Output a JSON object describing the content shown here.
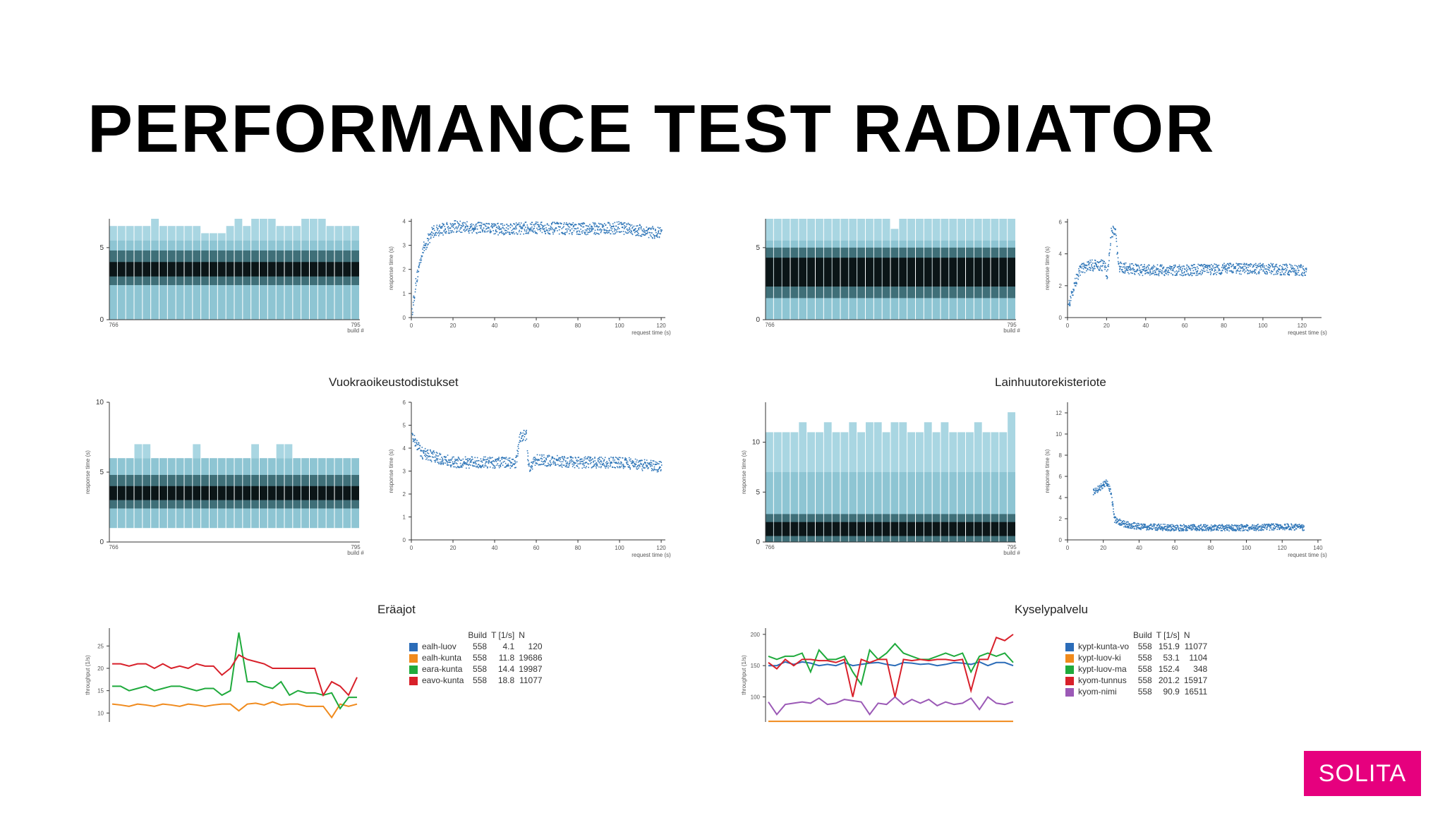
{
  "slide": {
    "title": "PERFORMANCE TEST RADIATOR",
    "logo_text": "SOLITA",
    "logo_color": "#e6007e"
  },
  "section_titles": {
    "mid_left": "Vuokraoikeustodistukset",
    "mid_right": "Lainhuutorekisteriote",
    "bottom_left": "Eräajot",
    "bottom_right": "Kyselypalvelu"
  },
  "labels": {
    "build_axis": "build #",
    "request_time_axis": "request time (s)",
    "response_time_axis": "response time (s)",
    "throughput_axis": "throughput (1/s)"
  },
  "legend_left": {
    "headers": [
      "",
      "Build",
      "T [1/s]",
      "N"
    ],
    "rows": [
      {
        "name": "ealh-luov",
        "build": "558",
        "t": "4.1",
        "n": "120",
        "color": "#2b6cb8"
      },
      {
        "name": "ealh-kunta",
        "build": "558",
        "t": "11.8",
        "n": "19686",
        "color": "#f08a1c"
      },
      {
        "name": "eara-kunta",
        "build": "558",
        "t": "14.4",
        "n": "19987",
        "color": "#1faa3c"
      },
      {
        "name": "eavo-kunta",
        "build": "558",
        "t": "18.8",
        "n": "11077",
        "color": "#d8202a"
      }
    ]
  },
  "legend_right": {
    "headers": [
      "",
      "Build",
      "T [1/s]",
      "N"
    ],
    "rows": [
      {
        "name": "kypt-kunta-vo",
        "build": "558",
        "t": "151.9",
        "n": "11077",
        "color": "#2b6cb8"
      },
      {
        "name": "kypt-luov-ki",
        "build": "558",
        "t": "53.1",
        "n": "1104",
        "color": "#f08a1c"
      },
      {
        "name": "kypt-luov-ma",
        "build": "558",
        "t": "152.4",
        "n": "348",
        "color": "#1faa3c"
      },
      {
        "name": "kyom-tunnus",
        "build": "558",
        "t": "201.2",
        "n": "15917",
        "color": "#d8202a"
      },
      {
        "name": "kyom-nimi",
        "build": "558",
        "t": "90.9",
        "n": "16511",
        "color": "#9b59b6"
      }
    ]
  },
  "chart_data": [
    {
      "type": "heatmap",
      "panel": "top-left-heatmap",
      "x_first_label": "766",
      "x_last_label": "795",
      "y_ticks": [
        "0",
        "5"
      ],
      "ylim": [
        0,
        7
      ],
      "columns": 30,
      "black_band": [
        3,
        4
      ],
      "dark_band": [
        2.4,
        4.8
      ],
      "mid_band": [
        0,
        5.5
      ],
      "column_tops": [
        6.5,
        6.5,
        6.5,
        6.5,
        6.5,
        7,
        6.5,
        6.5,
        6.5,
        6.5,
        6.5,
        6,
        6,
        6,
        6.5,
        7,
        6.5,
        7,
        7,
        7,
        6.5,
        6.5,
        6.5,
        7,
        7,
        7,
        6.5,
        6.5,
        6.5,
        6.5
      ]
    },
    {
      "type": "scatter",
      "panel": "top-left-scatter",
      "x_ticks": [
        "0",
        "20",
        "40",
        "60",
        "80",
        "100",
        "120"
      ],
      "y_ticks": [
        "0",
        "1",
        "2",
        "3",
        "4"
      ],
      "xlim": [
        0,
        122
      ],
      "ylim": [
        0,
        4.1
      ],
      "xlabel": "request time (s)",
      "profile": [
        [
          0,
          0.2
        ],
        [
          2,
          1.5
        ],
        [
          5,
          2.8
        ],
        [
          10,
          3.6
        ],
        [
          20,
          3.8
        ],
        [
          40,
          3.7
        ],
        [
          60,
          3.75
        ],
        [
          80,
          3.7
        ],
        [
          100,
          3.75
        ],
        [
          120,
          3.5
        ]
      ],
      "spread": 0.25
    },
    {
      "type": "heatmap",
      "panel": "top-right-heatmap",
      "x_first_label": "766",
      "x_last_label": "795",
      "y_ticks": [
        "0",
        "5"
      ],
      "ylim": [
        0,
        7
      ],
      "columns": 30,
      "black_band": [
        2.3,
        4.3
      ],
      "dark_band": [
        1.5,
        5
      ],
      "mid_band": [
        0,
        5.5
      ],
      "column_tops": [
        7,
        7,
        7,
        7,
        7,
        7,
        7,
        7,
        7,
        7,
        7,
        7,
        7,
        7,
        7,
        6.3,
        7,
        7,
        7,
        7,
        7,
        7,
        7,
        7,
        7,
        7,
        7,
        7,
        7,
        7
      ]
    },
    {
      "type": "scatter",
      "panel": "top-right-scatter",
      "x_ticks": [
        "0",
        "20",
        "40",
        "60",
        "80",
        "100",
        "120"
      ],
      "y_ticks": [
        "0",
        "2",
        "4",
        "6"
      ],
      "xlim": [
        0,
        130
      ],
      "ylim": [
        0,
        6.2
      ],
      "xlabel": "request time (s)",
      "profile": [
        [
          0,
          0.5
        ],
        [
          3,
          2
        ],
        [
          6,
          3
        ],
        [
          10,
          3.3
        ],
        [
          19,
          3.3
        ],
        [
          20,
          2.5
        ],
        [
          22,
          5.3
        ],
        [
          24,
          5.6
        ],
        [
          26,
          3.2
        ],
        [
          40,
          3
        ],
        [
          60,
          3
        ],
        [
          80,
          3.1
        ],
        [
          100,
          3.1
        ],
        [
          122,
          3
        ]
      ],
      "spread": 0.35
    },
    {
      "type": "heatmap",
      "panel": "mid-left-heatmap",
      "title": "Vuokraoikeustodistukset",
      "x_first_label": "766",
      "x_last_label": "795",
      "y_ticks": [
        "0",
        "5",
        "10"
      ],
      "ylim": [
        0,
        10
      ],
      "columns": 30,
      "black_band": [
        3,
        4
      ],
      "dark_band": [
        2.4,
        4.8
      ],
      "mid_band": [
        1,
        6
      ],
      "column_tops": [
        6,
        6,
        6,
        7,
        7,
        6,
        6,
        6,
        6,
        6,
        7,
        6,
        6,
        6,
        6,
        6,
        6,
        7,
        6,
        6,
        7,
        7,
        6,
        6,
        6,
        6,
        6,
        6,
        6,
        6
      ]
    },
    {
      "type": "scatter",
      "panel": "mid-left-scatter",
      "x_ticks": [
        "0",
        "20",
        "40",
        "60",
        "80",
        "100",
        "120"
      ],
      "y_ticks": [
        "0",
        "1",
        "2",
        "3",
        "4",
        "5",
        "6"
      ],
      "xlim": [
        0,
        122
      ],
      "ylim": [
        0,
        6
      ],
      "xlabel": "request time (s)",
      "profile": [
        [
          0,
          4.5
        ],
        [
          5,
          3.8
        ],
        [
          20,
          3.4
        ],
        [
          40,
          3.4
        ],
        [
          50,
          3.4
        ],
        [
          52,
          4.5
        ],
        [
          55,
          4.6
        ],
        [
          56,
          3.2
        ],
        [
          60,
          3.5
        ],
        [
          80,
          3.4
        ],
        [
          100,
          3.4
        ],
        [
          120,
          3.2
        ]
      ],
      "spread": 0.25
    },
    {
      "type": "heatmap",
      "panel": "mid-right-heatmap",
      "title": "Lainhuutorekisteriote",
      "x_first_label": "766",
      "x_last_label": "795",
      "y_ticks": [
        "0",
        "5",
        "10"
      ],
      "ylim": [
        0,
        14
      ],
      "columns": 30,
      "black_band": [
        0.6,
        2
      ],
      "dark_band": [
        0,
        2.8
      ],
      "mid_band": [
        0,
        7
      ],
      "column_tops": [
        11,
        11,
        11,
        11,
        12,
        11,
        11,
        12,
        11,
        11,
        12,
        11,
        12,
        12,
        11,
        12,
        12,
        11,
        11,
        12,
        11,
        12,
        11,
        11,
        11,
        12,
        11,
        11,
        11,
        13
      ]
    },
    {
      "type": "scatter",
      "panel": "mid-right-scatter",
      "x_ticks": [
        "0",
        "20",
        "40",
        "60",
        "80",
        "100",
        "120",
        "140"
      ],
      "y_ticks": [
        "0",
        "2",
        "4",
        "6",
        "8",
        "10",
        "12"
      ],
      "xlim": [
        0,
        142
      ],
      "ylim": [
        0,
        13
      ],
      "xlabel": "request time (s)",
      "profile": [
        [
          14,
          4.5
        ],
        [
          18,
          5
        ],
        [
          22,
          5.5
        ],
        [
          24,
          4.5
        ],
        [
          26,
          2
        ],
        [
          30,
          1.6
        ],
        [
          40,
          1.3
        ],
        [
          60,
          1.2
        ],
        [
          80,
          1.2
        ],
        [
          100,
          1.2
        ],
        [
          120,
          1.3
        ],
        [
          132,
          1.2
        ]
      ],
      "spread": 0.3
    },
    {
      "type": "line",
      "panel": "bottom-left-line",
      "title": "Eräajot",
      "y_ticks": [
        "10",
        "15",
        "20",
        "25"
      ],
      "ylim": [
        8,
        29
      ],
      "x_count": 30,
      "series": [
        {
          "name": "ealh-kunta",
          "color": "#f08a1c",
          "values": [
            12,
            11.8,
            11.5,
            12,
            11.8,
            11.5,
            12,
            11.8,
            11.5,
            12,
            11.8,
            11.5,
            11.8,
            12,
            12,
            10.5,
            12,
            12.2,
            11.8,
            12.5,
            11.8,
            12,
            12,
            11.5,
            11.5,
            11.5,
            9,
            12,
            11.5,
            12
          ]
        },
        {
          "name": "eara-kunta",
          "color": "#1faa3c",
          "values": [
            16,
            16,
            15,
            15.5,
            16,
            15,
            15.5,
            16,
            16,
            15.5,
            15,
            15.5,
            15.5,
            14,
            15,
            28,
            17,
            17,
            16,
            15.5,
            17,
            14,
            15,
            14.5,
            14.5,
            14,
            14.5,
            11,
            13.5,
            13.5
          ]
        },
        {
          "name": "eavo-kunta",
          "color": "#d8202a",
          "values": [
            21,
            21,
            20.5,
            21,
            21,
            20,
            21,
            20,
            20.5,
            20,
            21,
            20.5,
            20.5,
            18.5,
            20,
            23,
            22,
            21.5,
            21,
            20,
            20,
            20,
            20,
            20,
            20,
            14,
            17,
            16,
            14,
            18
          ]
        }
      ]
    },
    {
      "type": "line",
      "panel": "bottom-right-line",
      "title": "Kyselypalvelu",
      "y_ticks": [
        "100",
        "150",
        "200"
      ],
      "ylim": [
        60,
        210
      ],
      "x_count": 30,
      "series": [
        {
          "name": "kypt-luov-ki",
          "color": "#f08a1c",
          "values": [
            61,
            61,
            61,
            61,
            61,
            61,
            61,
            61,
            61,
            61,
            61,
            61,
            61,
            61,
            61,
            61,
            61,
            61,
            61,
            61,
            61,
            61,
            61,
            61,
            61,
            61,
            61,
            61,
            61,
            61
          ]
        },
        {
          "name": "kyom-nimi",
          "color": "#9b59b6",
          "values": [
            92,
            72,
            88,
            90,
            92,
            90,
            98,
            88,
            90,
            96,
            94,
            92,
            72,
            90,
            88,
            100,
            88,
            96,
            90,
            96,
            86,
            92,
            88,
            90,
            98,
            80,
            100,
            90,
            88,
            92
          ]
        },
        {
          "name": "kypt-kunta-vo",
          "color": "#2b6cb8",
          "values": [
            150,
            150,
            156,
            152,
            156,
            154,
            150,
            152,
            150,
            155,
            150,
            152,
            154,
            155,
            152,
            150,
            155,
            154,
            152,
            153,
            150,
            152,
            155,
            154,
            152,
            156,
            150,
            155,
            155,
            150
          ]
        },
        {
          "name": "kypt-luov-ma",
          "color": "#1faa3c",
          "values": [
            165,
            160,
            165,
            165,
            170,
            140,
            175,
            160,
            160,
            165,
            140,
            120,
            175,
            160,
            170,
            185,
            170,
            165,
            160,
            160,
            165,
            170,
            165,
            170,
            140,
            165,
            170,
            165,
            170,
            155
          ]
        },
        {
          "name": "kyom-tunnus",
          "color": "#d8202a",
          "values": [
            155,
            145,
            160,
            150,
            160,
            160,
            158,
            158,
            155,
            160,
            100,
            160,
            155,
            160,
            160,
            100,
            160,
            158,
            160,
            158,
            160,
            160,
            158,
            160,
            110,
            160,
            160,
            195,
            190,
            200
          ]
        }
      ]
    }
  ]
}
